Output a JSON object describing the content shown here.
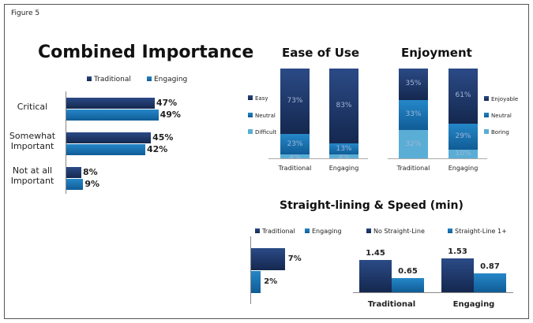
{
  "figure_label": "Figure 5",
  "chart_data": [
    {
      "type": "bar",
      "orientation": "horizontal",
      "title": "Combined Importance",
      "categories": [
        "Critical",
        "Somewhat Important",
        "Not at all Important"
      ],
      "series": [
        {
          "name": "Traditional",
          "values": [
            47,
            45,
            8
          ],
          "labels": [
            "47%",
            "45%",
            "8%"
          ]
        },
        {
          "name": "Engaging",
          "values": [
            49,
            42,
            9
          ],
          "labels": [
            "49%",
            "42%",
            "9%"
          ]
        }
      ],
      "legend": "top"
    },
    {
      "type": "bar",
      "stacked": true,
      "title": "Ease of Use",
      "categories": [
        "Traditional",
        "Engaging"
      ],
      "series": [
        {
          "name": "Easy",
          "values": [
            73,
            83
          ],
          "labels": [
            "73%",
            "83%"
          ]
        },
        {
          "name": "Neutral",
          "values": [
            23,
            13
          ],
          "labels": [
            "23%",
            "13%"
          ]
        },
        {
          "name": "Difficult",
          "values": [
            4,
            4
          ],
          "labels": [
            "4%",
            "4%"
          ]
        }
      ],
      "legend": "left"
    },
    {
      "type": "bar",
      "stacked": true,
      "title": "Enjoyment",
      "categories": [
        "Traditional",
        "Engaging"
      ],
      "series": [
        {
          "name": "Enjoyable",
          "values": [
            35,
            61
          ],
          "labels": [
            "35%",
            "61%"
          ]
        },
        {
          "name": "Neutral",
          "values": [
            33,
            29
          ],
          "labels": [
            "33%",
            "29%"
          ]
        },
        {
          "name": "Boring",
          "values": [
            32,
            10
          ],
          "labels": [
            "32%",
            "10%"
          ]
        }
      ],
      "legend": "right"
    },
    {
      "type": "bar",
      "orientation": "horizontal",
      "title": "Straight-lining & Speed (min)",
      "categories": [
        ""
      ],
      "series": [
        {
          "name": "Traditional",
          "values": [
            7
          ],
          "labels": [
            "7%"
          ]
        },
        {
          "name": "Engaging",
          "values": [
            2
          ],
          "labels": [
            "2%"
          ]
        }
      ],
      "legend": "top"
    },
    {
      "type": "bar",
      "categories": [
        "Traditional",
        "Engaging"
      ],
      "series": [
        {
          "name": "No Straight-Line",
          "values": [
            1.45,
            1.53
          ],
          "labels": [
            "1.45",
            "1.53"
          ]
        },
        {
          "name": "Straight-Line 1+",
          "values": [
            0.65,
            0.87
          ],
          "labels": [
            "0.65",
            "0.87"
          ]
        }
      ],
      "legend": "top"
    }
  ]
}
